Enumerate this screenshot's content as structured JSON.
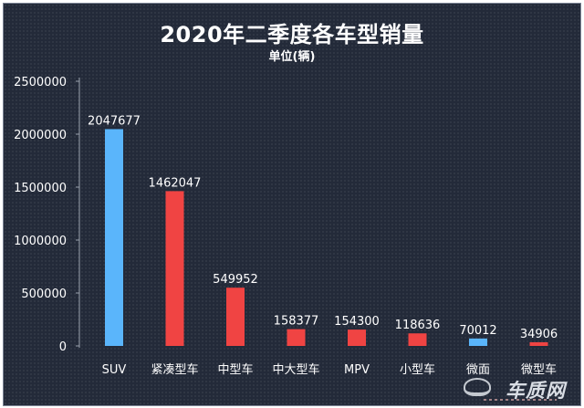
{
  "chart_data": {
    "type": "bar",
    "title": "2020年二季度各车型销量",
    "subtitle": "单位(辆)",
    "categories": [
      "SUV",
      "紧凑型车",
      "中型车",
      "中大型车",
      "MPV",
      "小型车",
      "微面",
      "微型车"
    ],
    "values": [
      2047677,
      1462047,
      549952,
      158377,
      154300,
      118636,
      70012,
      34906
    ],
    "value_labels": [
      "2047677",
      "1462047",
      "549952",
      "158377",
      "154300",
      "118636",
      "70012",
      "34906"
    ],
    "bar_colors": [
      "#5ab5fb",
      "#f04443",
      "#f04443",
      "#f04443",
      "#f04443",
      "#f04443",
      "#5ab5fb",
      "#f04443"
    ],
    "ylim": [
      0,
      2500000
    ],
    "yticks": [
      0,
      500000,
      1000000,
      1500000,
      2000000,
      2500000
    ],
    "ytick_labels": [
      "0",
      "500000",
      "1000000",
      "1500000",
      "2000000",
      "2500000"
    ],
    "grid": false,
    "legend": "none"
  },
  "watermark": {
    "text": "车质网"
  }
}
